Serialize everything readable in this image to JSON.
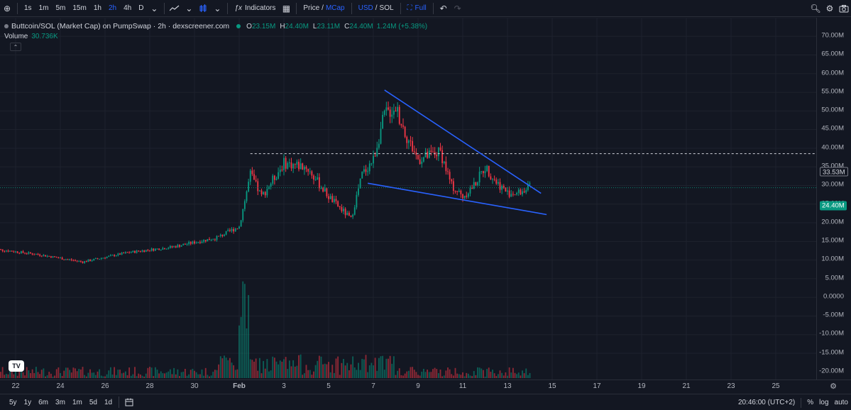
{
  "toolbar": {
    "timeframes": [
      "1s",
      "1m",
      "5m",
      "15m",
      "1h",
      "2h",
      "4h",
      "D"
    ],
    "active_timeframe": "2h",
    "indicators_label": "Indicators",
    "price_label": "Price",
    "slash": "/",
    "mcap_label": "MCap",
    "usd_label": "USD",
    "sol_label": "SOL",
    "full_label": "Full"
  },
  "legend": {
    "title": "Buttcoin/SOL (Market Cap) on PumpSwap · 2h · dexscreener.com",
    "o_label": "O",
    "o_value": "23.15M",
    "h_label": "H",
    "h_value": "24.40M",
    "l_label": "L",
    "l_value": "23.11M",
    "c_label": "C",
    "c_value": "24.40M",
    "change": "1.24M (+5.38%)",
    "volume_label": "Volume",
    "volume_value": "30.736K"
  },
  "price_axis": {
    "labels": [
      "70.00M",
      "65.00M",
      "60.00M",
      "55.00M",
      "50.00M",
      "45.00M",
      "40.00M",
      "35.00M",
      "30.00M",
      "25.00M",
      "20.00M",
      "15.00M",
      "10.00M",
      "5.00M",
      "0.0000",
      "-5.00M",
      "-10.00M",
      "-15.00M",
      "-20.00M"
    ],
    "level_tag": "33.53M",
    "current_tag": "24.40M"
  },
  "time_axis": {
    "labels": [
      "22",
      "24",
      "26",
      "28",
      "30",
      "Feb",
      "3",
      "5",
      "7",
      "9",
      "11",
      "13",
      "15",
      "17",
      "19",
      "21",
      "23",
      "25"
    ]
  },
  "bottom_bar": {
    "ranges": [
      "5y",
      "1y",
      "6m",
      "3m",
      "1m",
      "5d",
      "1d"
    ],
    "clock": "20:46:00 (UTC+2)",
    "percent_label": "%",
    "log_label": "log",
    "auto_label": "auto"
  },
  "chart_data": {
    "type": "candlestick",
    "y_range": [
      -22,
      72
    ],
    "level_line": 33.53,
    "current_price": 24.4,
    "up_color": "#089981",
    "down_color": "#f23645",
    "trendline_color": "#2962ff",
    "upper_trendline": [
      {
        "x": "Feb 7 12:00",
        "y": 50.6
      },
      {
        "x": "Feb 14 12:00",
        "y": 22.9
      }
    ],
    "lower_trendline": [
      {
        "x": "Feb 6 18:00",
        "y": 25.6
      },
      {
        "x": "Feb 14 18:00",
        "y": 17.2
      }
    ],
    "anchors": [
      {
        "x": "Jan 21",
        "y": 8.0
      },
      {
        "x": "Jan 23",
        "y": 6.5
      },
      {
        "x": "Jan 25",
        "y": 4.5
      },
      {
        "x": "Jan 27",
        "y": 7.0
      },
      {
        "x": "Jan 29",
        "y": 8.5
      },
      {
        "x": "Jan 31",
        "y": 11.0
      },
      {
        "x": "Feb 1",
        "y": 14.0
      },
      {
        "x": "Feb 1 12:00",
        "y": 28.0
      },
      {
        "x": "Feb 2",
        "y": 22.0
      },
      {
        "x": "Feb 3",
        "y": 31.0
      },
      {
        "x": "Feb 4",
        "y": 30.0
      },
      {
        "x": "Feb 5",
        "y": 22.0
      },
      {
        "x": "Feb 6",
        "y": 16.0
      },
      {
        "x": "Feb 6 12:00",
        "y": 28.0
      },
      {
        "x": "Feb 7",
        "y": 32.0
      },
      {
        "x": "Feb 7 12:00",
        "y": 44.0
      },
      {
        "x": "Feb 8",
        "y": 46.0
      },
      {
        "x": "Feb 8 12:00",
        "y": 38.0
      },
      {
        "x": "Feb 9",
        "y": 32.0
      },
      {
        "x": "Feb 10",
        "y": 34.0
      },
      {
        "x": "Feb 10 12:00",
        "y": 25.0
      },
      {
        "x": "Feb 11",
        "y": 22.0
      },
      {
        "x": "Feb 11 12:00",
        "y": 25.0
      },
      {
        "x": "Feb 12",
        "y": 30.0
      },
      {
        "x": "Feb 12 12:00",
        "y": 26.0
      },
      {
        "x": "Feb 13",
        "y": 23.0
      },
      {
        "x": "Feb 13 12:00",
        "y": 23.0
      },
      {
        "x": "Feb 14",
        "y": 24.4
      }
    ]
  }
}
